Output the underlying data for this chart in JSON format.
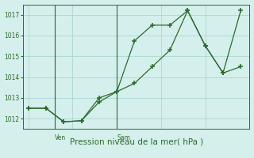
{
  "line1_x": [
    0,
    1,
    2,
    3,
    4,
    5,
    6,
    7,
    8,
    9,
    10,
    11,
    12
  ],
  "line1_y": [
    1012.5,
    1012.5,
    1011.85,
    1011.9,
    1012.8,
    1013.3,
    1015.75,
    1016.5,
    1016.5,
    1017.2,
    1015.5,
    1014.2,
    1014.5
  ],
  "line2_x": [
    0,
    1,
    2,
    3,
    4,
    5,
    6,
    7,
    8,
    9,
    10,
    11,
    12
  ],
  "line2_y": [
    1012.5,
    1012.5,
    1011.85,
    1011.9,
    1013.0,
    1013.3,
    1013.7,
    1014.5,
    1015.3,
    1017.2,
    1015.5,
    1014.2,
    1017.2
  ],
  "line_color": "#2d6a2d",
  "bg_color": "#d4efec",
  "grid_color": "#aed6d2",
  "xlabel": "Pression niveau de la mer( hPa )",
  "ven_x": 1.5,
  "sam_x": 5.0,
  "ylim_min": 1011.5,
  "ylim_max": 1017.5,
  "xlim_min": -0.3,
  "xlim_max": 12.5,
  "yticks": [
    1012,
    1013,
    1014,
    1015,
    1016,
    1017
  ],
  "ytick_fontsize": 5.5,
  "xlabel_fontsize": 7.5
}
